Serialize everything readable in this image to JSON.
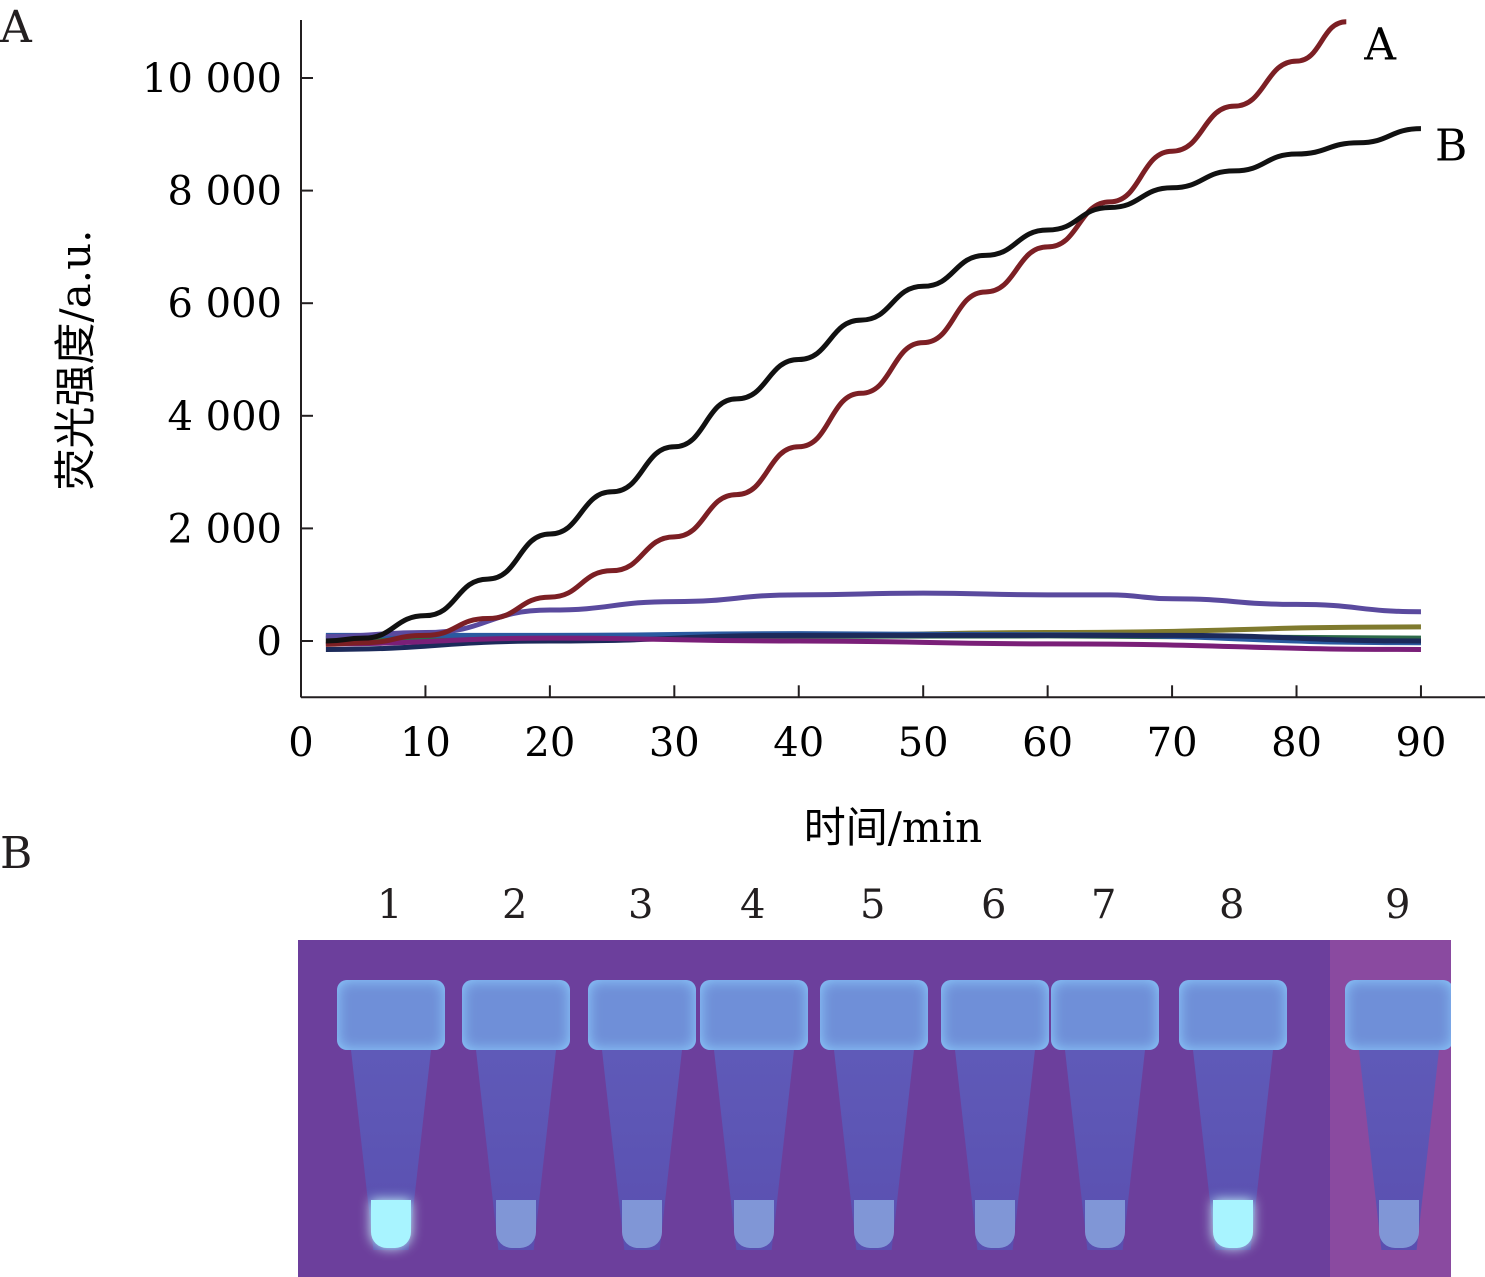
{
  "panels": {
    "a": "A",
    "b": "B"
  },
  "chart_data": {
    "type": "line",
    "xlabel": "时间/min",
    "ylabel": "荧光强度/a.u.",
    "xlim": [
      0,
      95
    ],
    "ylim": [
      -1000,
      11000
    ],
    "xticks": [
      0,
      10,
      20,
      30,
      40,
      50,
      60,
      70,
      80,
      90
    ],
    "yticks": [
      {
        "v": 0,
        "label": "0"
      },
      {
        "v": 2000,
        "label": "2 000"
      },
      {
        "v": 4000,
        "label": "4 000"
      },
      {
        "v": 6000,
        "label": "6 000"
      },
      {
        "v": 8000,
        "label": "8 000"
      },
      {
        "v": 10000,
        "label": "10 000"
      }
    ],
    "series": [
      {
        "name": "olive",
        "color": "#7f7a2e",
        "points": [
          [
            2,
            -20
          ],
          [
            20,
            40
          ],
          [
            40,
            100
          ],
          [
            60,
            150
          ],
          [
            90,
            250
          ]
        ]
      },
      {
        "name": "green",
        "color": "#2e6b4a",
        "points": [
          [
            2,
            50
          ],
          [
            30,
            80
          ],
          [
            60,
            90
          ],
          [
            90,
            50
          ]
        ]
      },
      {
        "name": "blue",
        "color": "#2a5aa0",
        "points": [
          [
            2,
            100
          ],
          [
            20,
            100
          ],
          [
            40,
            130
          ],
          [
            60,
            110
          ],
          [
            90,
            -30
          ]
        ]
      },
      {
        "name": "navy",
        "color": "#1c2a5a",
        "points": [
          [
            2,
            -150
          ],
          [
            20,
            0
          ],
          [
            40,
            100
          ],
          [
            70,
            100
          ],
          [
            90,
            0
          ]
        ]
      },
      {
        "name": "magenta",
        "color": "#7a1f78",
        "points": [
          [
            2,
            -50
          ],
          [
            20,
            50
          ],
          [
            40,
            0
          ],
          [
            60,
            -50
          ],
          [
            90,
            -150
          ]
        ]
      },
      {
        "name": "purple",
        "color": "#5a4a9e",
        "points": [
          [
            2,
            80
          ],
          [
            10,
            150
          ],
          [
            20,
            550
          ],
          [
            30,
            700
          ],
          [
            40,
            820
          ],
          [
            50,
            850
          ],
          [
            60,
            820
          ],
          [
            65,
            820
          ],
          [
            70,
            750
          ],
          [
            80,
            650
          ],
          [
            90,
            520
          ]
        ]
      },
      {
        "name": "A",
        "label": "A",
        "color": "#7c1f24",
        "points": [
          [
            2,
            -60
          ],
          [
            5,
            -30
          ],
          [
            10,
            100
          ],
          [
            15,
            400
          ],
          [
            20,
            780
          ],
          [
            25,
            1250
          ],
          [
            30,
            1850
          ],
          [
            35,
            2600
          ],
          [
            40,
            3450
          ],
          [
            45,
            4400
          ],
          [
            50,
            5300
          ],
          [
            55,
            6200
          ],
          [
            60,
            7000
          ],
          [
            65,
            7800
          ],
          [
            70,
            8700
          ],
          [
            75,
            9500
          ],
          [
            80,
            10300
          ],
          [
            84,
            11000
          ]
        ]
      },
      {
        "name": "B",
        "label": "B",
        "color": "#111111",
        "points": [
          [
            2,
            0
          ],
          [
            5,
            50
          ],
          [
            10,
            450
          ],
          [
            15,
            1100
          ],
          [
            20,
            1900
          ],
          [
            25,
            2650
          ],
          [
            30,
            3450
          ],
          [
            35,
            4300
          ],
          [
            40,
            5000
          ],
          [
            45,
            5700
          ],
          [
            50,
            6300
          ],
          [
            55,
            6850
          ],
          [
            60,
            7300
          ],
          [
            65,
            7700
          ],
          [
            70,
            8050
          ],
          [
            75,
            8350
          ],
          [
            80,
            8650
          ],
          [
            85,
            8850
          ],
          [
            90,
            9100
          ]
        ]
      }
    ]
  },
  "photo": {
    "lanes": [
      "1",
      "2",
      "3",
      "4",
      "5",
      "6",
      "7",
      "8",
      "9"
    ],
    "bright": [
      true,
      false,
      false,
      false,
      false,
      false,
      false,
      true,
      false
    ]
  }
}
